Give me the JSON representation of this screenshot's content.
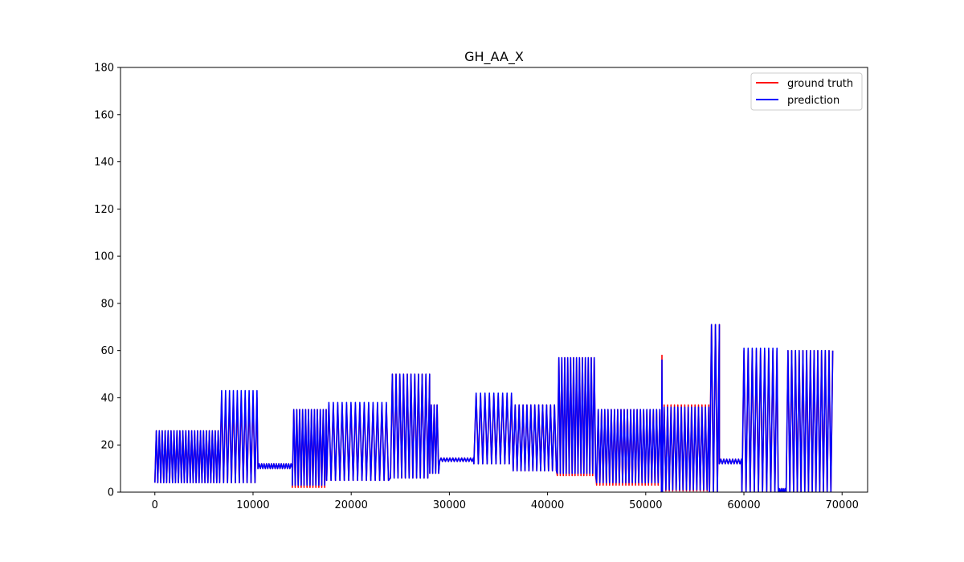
{
  "chart_data": {
    "type": "line",
    "title": "GH_AA_X",
    "xlabel": "",
    "ylabel": "",
    "xlim": [
      -3500,
      72600
    ],
    "ylim": [
      0,
      180
    ],
    "xticks": [
      0,
      10000,
      20000,
      30000,
      40000,
      50000,
      60000,
      70000
    ],
    "yticks": [
      0,
      20,
      40,
      60,
      80,
      100,
      120,
      140,
      160,
      180
    ],
    "grid": false,
    "legend_position": "upper right",
    "colors": {
      "ground_truth": "#ff0000",
      "prediction": "#0000ff"
    },
    "series": [
      {
        "name": "ground truth",
        "color": "#ff0000",
        "segments": [
          {
            "x": [
              0,
              6600
            ],
            "low": 4,
            "high": 26,
            "period": 300
          },
          {
            "x": [
              6600,
              10500
            ],
            "low": 4,
            "high": 40,
            "period": 400
          },
          {
            "x": [
              10500,
              14000
            ],
            "low": 10,
            "high": 12,
            "period": 250
          },
          {
            "x": [
              14000,
              17500
            ],
            "low": 2,
            "high": 35,
            "period": 300
          },
          {
            "x": [
              17500,
              24000
            ],
            "low": 5,
            "high": 37,
            "period": 450
          },
          {
            "x": [
              24000,
              28000
            ],
            "low": 6,
            "high": 50,
            "period": 380
          },
          {
            "x": [
              28000,
              29000
            ],
            "low": 8,
            "high": 37,
            "period": 300
          },
          {
            "x": [
              29000,
              32500
            ],
            "low": 13,
            "high": 14.5,
            "period": 300
          },
          {
            "x": [
              32500,
              36500
            ],
            "low": 12,
            "high": 41,
            "period": 450
          },
          {
            "x": [
              36500,
              41000
            ],
            "low": 9,
            "high": 37,
            "period": 400
          },
          {
            "x": [
              41000,
              45000
            ],
            "low": 7,
            "high": 57,
            "period": 300
          },
          {
            "x": [
              45000,
              51600
            ],
            "low": 3,
            "high": 35,
            "period": 330
          },
          {
            "x": [
              51600,
              51700
            ],
            "low": 0,
            "high": 58,
            "period": 100
          },
          {
            "x": [
              51700,
              56500
            ],
            "low": 0.5,
            "high": 37,
            "period": 350
          },
          {
            "x": [
              56500,
              57500
            ],
            "low": 0,
            "high": 71,
            "period": 400
          },
          {
            "x": [
              57500,
              59800
            ],
            "low": 12,
            "high": 14,
            "period": 300
          },
          {
            "x": [
              59800,
              63500
            ],
            "low": 0,
            "high": 60,
            "period": 420
          },
          {
            "x": [
              63500,
              64300
            ],
            "low": 0,
            "high": 1.5,
            "period": 200
          },
          {
            "x": [
              64300,
              69200
            ],
            "low": 0,
            "high": 60,
            "period": 380
          }
        ]
      },
      {
        "name": "prediction",
        "color": "#0000ff",
        "segments": [
          {
            "x": [
              0,
              6600
            ],
            "low": 4,
            "high": 26,
            "period": 300
          },
          {
            "x": [
              6600,
              10500
            ],
            "low": 4,
            "high": 43,
            "period": 400
          },
          {
            "x": [
              10500,
              14000
            ],
            "low": 10,
            "high": 12,
            "period": 250
          },
          {
            "x": [
              14000,
              17500
            ],
            "low": 3,
            "high": 35,
            "period": 300
          },
          {
            "x": [
              17500,
              24000
            ],
            "low": 5,
            "high": 38,
            "period": 450
          },
          {
            "x": [
              24000,
              28000
            ],
            "low": 6,
            "high": 50,
            "period": 380
          },
          {
            "x": [
              28000,
              29000
            ],
            "low": 8,
            "high": 37,
            "period": 300
          },
          {
            "x": [
              29000,
              32500
            ],
            "low": 13,
            "high": 14.5,
            "period": 300
          },
          {
            "x": [
              32500,
              36500
            ],
            "low": 12,
            "high": 42,
            "period": 450
          },
          {
            "x": [
              36500,
              41000
            ],
            "low": 9,
            "high": 37,
            "period": 400
          },
          {
            "x": [
              41000,
              45000
            ],
            "low": 8,
            "high": 57,
            "period": 300
          },
          {
            "x": [
              45000,
              51600
            ],
            "low": 4,
            "high": 35,
            "period": 330
          },
          {
            "x": [
              51600,
              51700
            ],
            "low": 0,
            "high": 56,
            "period": 100
          },
          {
            "x": [
              51700,
              56500
            ],
            "low": 1,
            "high": 36,
            "period": 350
          },
          {
            "x": [
              56500,
              57500
            ],
            "low": 0,
            "high": 71,
            "period": 400
          },
          {
            "x": [
              57500,
              59800
            ],
            "low": 12,
            "high": 14,
            "period": 300
          },
          {
            "x": [
              59800,
              63500
            ],
            "low": 0,
            "high": 61,
            "period": 420
          },
          {
            "x": [
              63500,
              64300
            ],
            "low": 0,
            "high": 1.5,
            "period": 200
          },
          {
            "x": [
              64300,
              69200
            ],
            "low": 0,
            "high": 60,
            "period": 380
          }
        ]
      }
    ]
  }
}
